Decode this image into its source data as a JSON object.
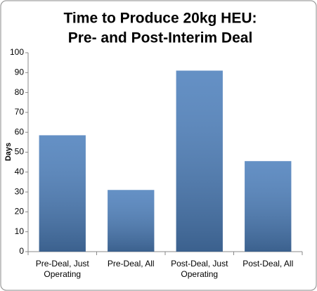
{
  "chart_data": {
    "type": "bar",
    "title": [
      "Time to Produce 20kg HEU:",
      "Pre- and Post-Interim Deal"
    ],
    "y_label": "Days",
    "categories": [
      "Pre-Deal, Just Operating",
      "Pre-Deal, All",
      "Post-Deal, Just Operating",
      "Post-Deal, All"
    ],
    "values": [
      58.5,
      31,
      91,
      45.5
    ],
    "color": "#4f81bd",
    "ylim": [
      0,
      100
    ],
    "yticks": [
      0,
      10,
      20,
      30,
      40,
      50,
      60,
      70,
      80,
      90,
      100
    ],
    "grid": false
  }
}
